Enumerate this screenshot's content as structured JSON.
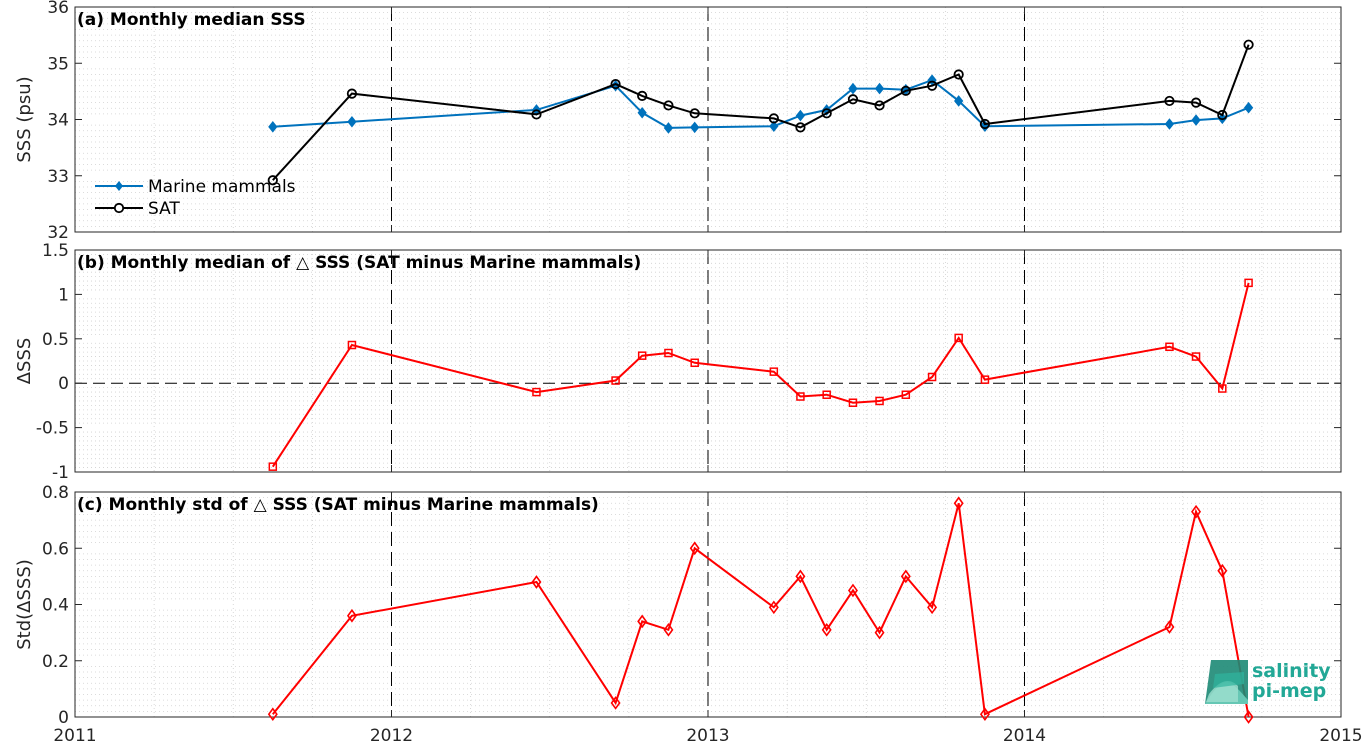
{
  "chart_data": [
    {
      "type": "line",
      "title": "(a) Monthly median SSS",
      "ylabel": "SSS (psu)",
      "xlim": [
        2011,
        2015
      ],
      "ylim": [
        32,
        36
      ],
      "yticks": [
        32,
        33,
        34,
        35,
        36
      ],
      "grid": true,
      "legend": "bottom-left",
      "series": [
        {
          "name": "Marine mammals",
          "color": "#0072BD",
          "marker": "diamond-filled",
          "x": [
            2011.625,
            2011.875,
            2012.458,
            2012.708,
            2012.792,
            2012.875,
            2012.958,
            2013.208,
            2013.292,
            2013.375,
            2013.458,
            2013.542,
            2013.625,
            2013.708,
            2013.792,
            2013.875,
            2014.458,
            2014.542,
            2014.625,
            2014.708
          ],
          "y": [
            33.87,
            33.96,
            34.17,
            34.6,
            34.12,
            33.85,
            33.86,
            33.88,
            34.07,
            34.17,
            34.55,
            34.55,
            34.53,
            34.7,
            34.33,
            33.88,
            33.92,
            33.99,
            34.02,
            34.21
          ]
        },
        {
          "name": "SAT",
          "color": "#000000",
          "marker": "circle-open",
          "x": [
            2011.625,
            2011.875,
            2012.458,
            2012.708,
            2012.792,
            2012.875,
            2012.958,
            2013.208,
            2013.292,
            2013.375,
            2013.458,
            2013.542,
            2013.625,
            2013.708,
            2013.792,
            2013.875,
            2014.458,
            2014.542,
            2014.625,
            2014.708
          ],
          "y": [
            32.92,
            34.46,
            34.09,
            34.63,
            34.42,
            34.25,
            34.11,
            34.02,
            33.86,
            34.11,
            34.36,
            34.25,
            34.51,
            34.6,
            34.8,
            33.92,
            34.33,
            34.3,
            34.08,
            35.33
          ]
        }
      ]
    },
    {
      "type": "line",
      "title": "(b) Monthly median of △ SSS (SAT minus Marine mammals)",
      "ylabel": "ΔSSS",
      "xlim": [
        2011,
        2015
      ],
      "ylim": [
        -1,
        1.5
      ],
      "yticks": [
        -1,
        -0.5,
        0,
        0.5,
        1,
        1.5
      ],
      "zero_line": true,
      "grid": true,
      "series": [
        {
          "color": "#FF0000",
          "marker": "square-open",
          "x": [
            2011.625,
            2011.875,
            2012.458,
            2012.708,
            2012.792,
            2012.875,
            2012.958,
            2013.208,
            2013.292,
            2013.375,
            2013.458,
            2013.542,
            2013.625,
            2013.708,
            2013.792,
            2013.875,
            2014.458,
            2014.542,
            2014.625,
            2014.708
          ],
          "y": [
            -0.94,
            0.43,
            -0.1,
            0.03,
            0.31,
            0.34,
            0.23,
            0.13,
            -0.15,
            -0.13,
            -0.22,
            -0.2,
            -0.13,
            0.07,
            0.51,
            0.04,
            0.41,
            0.3,
            -0.06,
            1.13
          ]
        }
      ]
    },
    {
      "type": "line",
      "title": "(c) Monthly std of △ SSS (SAT minus Marine mammals)",
      "ylabel": "Std(ΔSSS)",
      "xlim": [
        2011,
        2015
      ],
      "ylim": [
        0,
        0.8
      ],
      "yticks": [
        0,
        0.2,
        0.4,
        0.6,
        0.8
      ],
      "grid": true,
      "series": [
        {
          "color": "#FF0000",
          "marker": "diamond-open",
          "x": [
            2011.625,
            2011.875,
            2012.458,
            2012.708,
            2012.792,
            2012.875,
            2012.958,
            2013.208,
            2013.292,
            2013.375,
            2013.458,
            2013.542,
            2013.625,
            2013.708,
            2013.792,
            2013.875,
            2014.458,
            2014.542,
            2014.625,
            2014.708
          ],
          "y": [
            0.01,
            0.36,
            0.48,
            0.05,
            0.34,
            0.31,
            0.6,
            0.39,
            0.5,
            0.31,
            0.45,
            0.3,
            0.5,
            0.39,
            0.76,
            0.01,
            0.32,
            0.73,
            0.52,
            0.0
          ]
        }
      ]
    }
  ],
  "x_axis": {
    "ticks": [
      2011,
      2012,
      2013,
      2014,
      2015
    ],
    "tick_labels": [
      "2011",
      "2012",
      "2013",
      "2014",
      "2015"
    ]
  },
  "logo": {
    "line1": "salinity",
    "line2": "pi-mep",
    "color": "#22a896"
  }
}
